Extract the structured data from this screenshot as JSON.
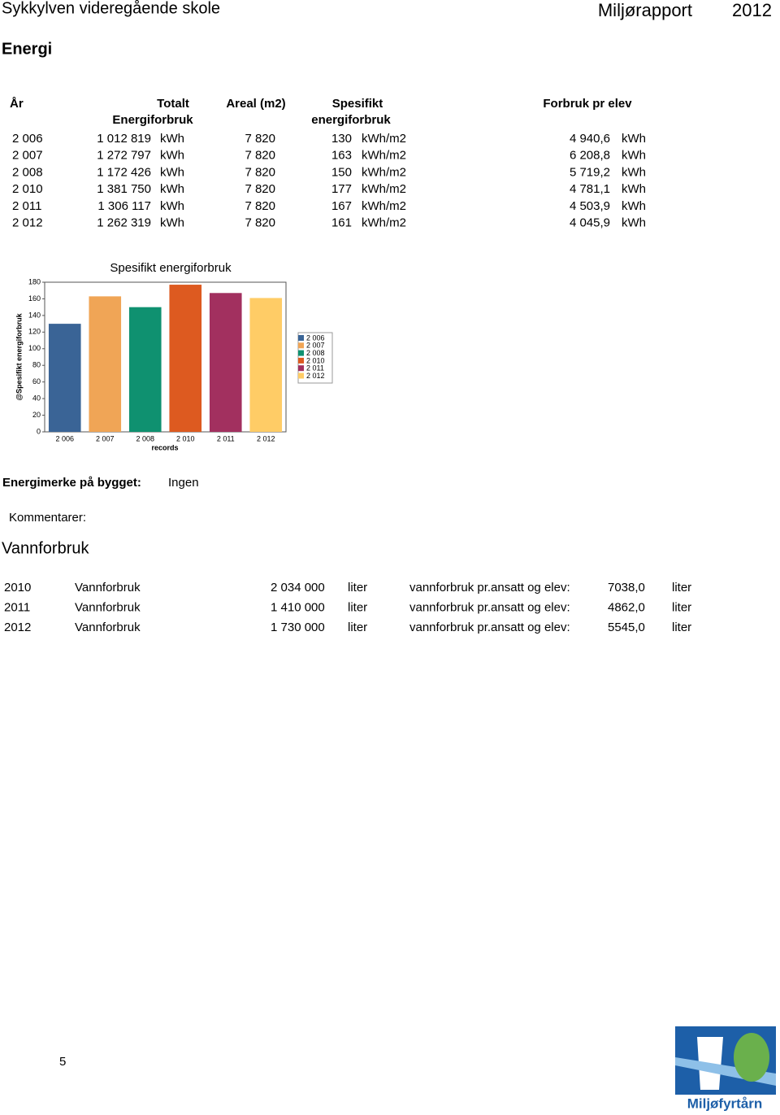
{
  "header": {
    "school": "Sykkylven videregående skole",
    "report": "Miljørapport",
    "year": "2012"
  },
  "energy": {
    "title": "Energi",
    "table": {
      "header": [
        {
          "lines": [
            "År"
          ]
        },
        {
          "lines": [
            "Totalt",
            "Energiforbruk"
          ]
        },
        {
          "lines": [
            "Areal (m2)"
          ]
        },
        {
          "lines": [
            "Spesifikt",
            "energiforbruk"
          ]
        },
        {
          "lines": [
            "Forbruk pr elev"
          ]
        }
      ],
      "rows": [
        [
          "2 006",
          "1 012 819",
          "kWh",
          "7 820",
          "130",
          "kWh/m2",
          "4 940,6",
          "kWh"
        ],
        [
          "2 007",
          "1 272 797",
          "kWh",
          "7 820",
          "163",
          "kWh/m2",
          "6 208,8",
          "kWh"
        ],
        [
          "2 008",
          "1 172 426",
          "kWh",
          "7 820",
          "150",
          "kWh/m2",
          "5 719,2",
          "kWh"
        ],
        [
          "2 010",
          "1 381 750",
          "kWh",
          "7 820",
          "177",
          "kWh/m2",
          "4 781,1",
          "kWh"
        ],
        [
          "2 011",
          "1 306 117",
          "kWh",
          "7 820",
          "167",
          "kWh/m2",
          "4 503,9",
          "kWh"
        ],
        [
          "2 012",
          "1 262 319",
          "kWh",
          "7 820",
          "161",
          "kWh/m2",
          "4 045,9",
          "kWh"
        ]
      ]
    },
    "label_mark": "Energimerke på bygget:",
    "mark": "Ingen",
    "comments": "Kommentarer:"
  },
  "chart_data": {
    "type": "bar",
    "title": "Spesifikt energiforbruk",
    "x_label": "records",
    "y_label": "@Spesifikt energiforbruk",
    "categories": [
      "2 006",
      "2 007",
      "2 008",
      "2 010",
      "2 011",
      "2 012"
    ],
    "values": [
      130,
      163,
      150,
      177,
      167,
      161
    ],
    "colors": [
      "#3a6496",
      "#f0a556",
      "#0f9170",
      "#dd5a20",
      "#a2305f",
      "#ffcc66"
    ],
    "ylim": [
      0,
      180
    ],
    "yticks": [
      0,
      20,
      40,
      60,
      80,
      100,
      120,
      140,
      160,
      180
    ],
    "legend": "right"
  },
  "water": {
    "title": "Vannforbruk",
    "rows": [
      [
        "2010",
        "Vannforbruk",
        "2 034 000",
        "liter",
        "vannforbruk pr.ansatt og elev:",
        "7038,0",
        "liter"
      ],
      [
        "2011",
        "Vannforbruk",
        "1 410 000",
        "liter",
        "vannforbruk pr.ansatt og elev:",
        "4862,0",
        "liter"
      ],
      [
        "2012",
        "Vannforbruk",
        "1 730 000",
        "liter",
        "vannforbruk pr.ansatt og elev:",
        "5545,0",
        "liter"
      ]
    ]
  },
  "footer": {
    "page": "5",
    "logo": "Miljøfyrtårn"
  }
}
